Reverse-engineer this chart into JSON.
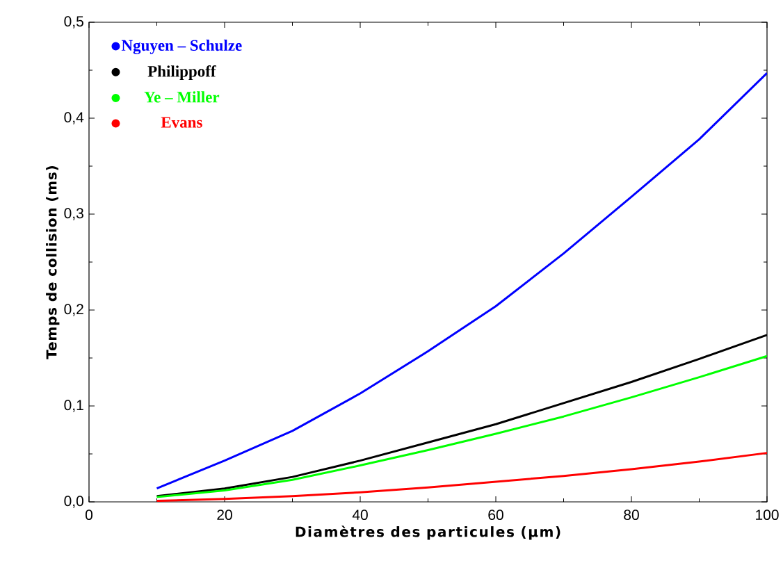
{
  "chart_data": {
    "type": "line",
    "xlabel": "Diamètres des particules (µm)",
    "ylabel": "Temps de collision (ms)",
    "x": [
      10,
      20,
      30,
      40,
      50,
      60,
      70,
      80,
      90,
      100
    ],
    "series": [
      {
        "name": "Nguyen – Schulze",
        "color": "#0000ff",
        "values": [
          0.014,
          0.043,
          0.074,
          0.113,
          0.157,
          0.204,
          0.259,
          0.318,
          0.378,
          0.447
        ]
      },
      {
        "name": "Philippoff",
        "color": "#000000",
        "values": [
          0.006,
          0.014,
          0.026,
          0.043,
          0.062,
          0.081,
          0.103,
          0.125,
          0.149,
          0.174
        ]
      },
      {
        "name": "Ye – Miller",
        "color": "#00ff00",
        "values": [
          0.005,
          0.012,
          0.023,
          0.038,
          0.054,
          0.071,
          0.089,
          0.109,
          0.13,
          0.152
        ]
      },
      {
        "name": "Evans",
        "color": "#ff0000",
        "values": [
          0.001,
          0.003,
          0.006,
          0.01,
          0.015,
          0.021,
          0.027,
          0.034,
          0.042,
          0.051
        ]
      }
    ],
    "xlim": [
      0,
      100
    ],
    "ylim": [
      0,
      0.5
    ],
    "xticks": [
      0,
      20,
      40,
      60,
      80,
      100
    ],
    "yticks": [
      {
        "value": 0,
        "label": "0,0"
      },
      {
        "value": 0.1,
        "label": "0,1"
      },
      {
        "value": 0.2,
        "label": "0,2"
      },
      {
        "value": 0.3,
        "label": "0,3"
      },
      {
        "value": 0.4,
        "label": "0,4"
      },
      {
        "value": 0.5,
        "label": "0,5"
      }
    ],
    "legend": "top left"
  }
}
